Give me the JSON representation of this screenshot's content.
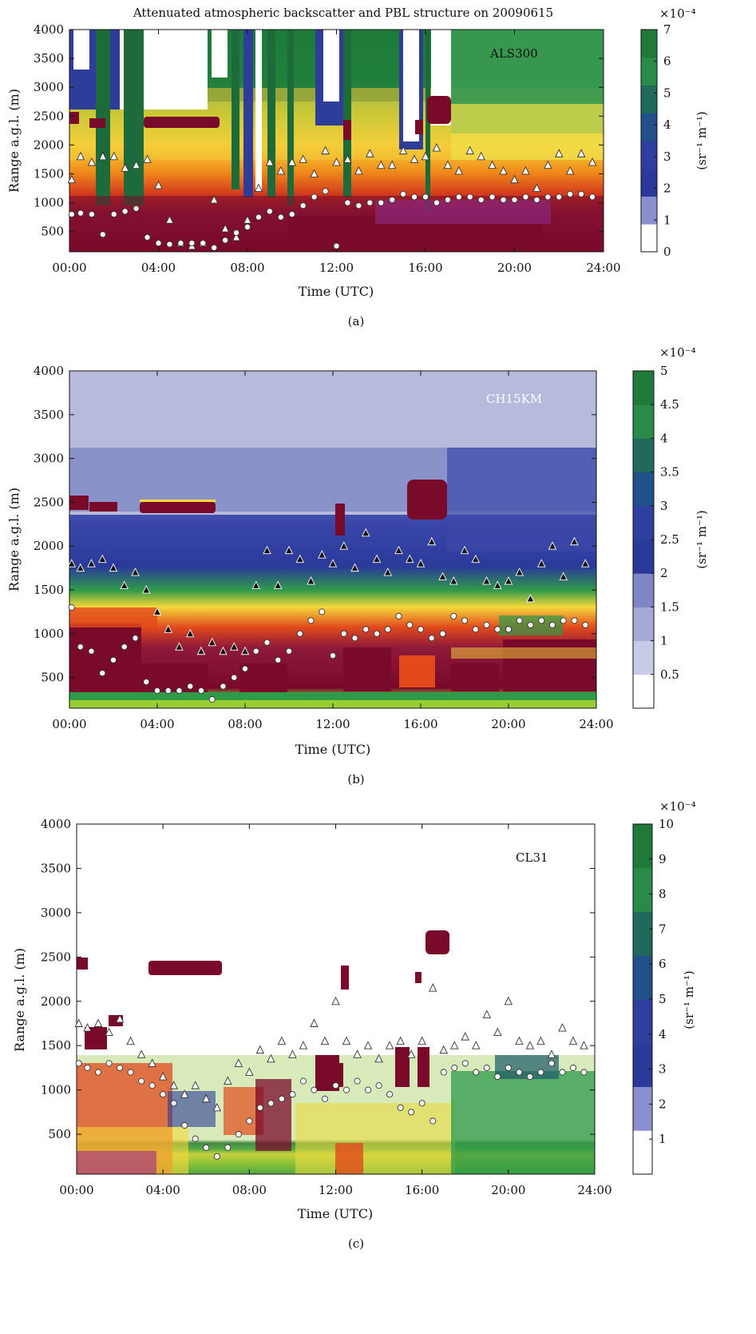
{
  "figure": {
    "title": "Attenuated atmospheric backscatter and PBL structure on 20090615"
  },
  "chart_data": [
    {
      "type": "heatmap",
      "panel_label": "(a)",
      "instrument": "ALS300",
      "xlabel": "Time (UTC)",
      "ylabel": "Range a.g.l. (m)",
      "x_ticks": [
        "00:00",
        "04:00",
        "08:00",
        "12:00",
        "16:00",
        "20:00",
        "24:00"
      ],
      "y_ticks": [
        500,
        1000,
        1500,
        2000,
        2500,
        3000,
        3500,
        4000
      ],
      "xlim": [
        0,
        24
      ],
      "ylim": [
        150,
        4000
      ],
      "colorbar": {
        "label": "(sr⁻¹ m⁻¹)",
        "exponent": "×10⁻⁴",
        "ticks": [
          0,
          1,
          2,
          3,
          4,
          5,
          6,
          7
        ],
        "range": [
          0,
          7
        ]
      },
      "pbl_triangles": [
        [
          0.1,
          1400
        ],
        [
          0.5,
          1800
        ],
        [
          1.0,
          1700
        ],
        [
          1.5,
          1800
        ],
        [
          2.0,
          1800
        ],
        [
          2.5,
          1600
        ],
        [
          3.0,
          1650
        ],
        [
          3.5,
          1750
        ],
        [
          4.0,
          1300
        ],
        [
          4.5,
          700
        ],
        [
          5.0,
          300
        ],
        [
          5.5,
          250
        ],
        [
          6.0,
          300
        ],
        [
          6.5,
          1050
        ],
        [
          7.0,
          550
        ],
        [
          7.5,
          400
        ],
        [
          8.0,
          700
        ],
        [
          8.5,
          1250
        ],
        [
          9.0,
          1700
        ],
        [
          9.5,
          1550
        ],
        [
          10.0,
          1700
        ],
        [
          10.5,
          1750
        ],
        [
          11.0,
          1500
        ],
        [
          11.5,
          1900
        ],
        [
          12.0,
          1700
        ],
        [
          12.5,
          1750
        ],
        [
          13.0,
          1550
        ],
        [
          13.5,
          1850
        ],
        [
          14.0,
          1650
        ],
        [
          14.5,
          1650
        ],
        [
          15.0,
          1900
        ],
        [
          15.5,
          1750
        ],
        [
          16.0,
          1800
        ],
        [
          16.5,
          1950
        ],
        [
          17.0,
          1650
        ],
        [
          17.5,
          1550
        ],
        [
          18.0,
          1900
        ],
        [
          18.5,
          1800
        ],
        [
          19.0,
          1650
        ],
        [
          19.5,
          1550
        ],
        [
          20.0,
          1400
        ],
        [
          20.5,
          1550
        ],
        [
          21.0,
          1250
        ],
        [
          21.5,
          1650
        ],
        [
          22.0,
          1850
        ],
        [
          22.5,
          1550
        ],
        [
          23.0,
          1850
        ],
        [
          23.5,
          1700
        ]
      ],
      "pbl_circles": [
        [
          0.1,
          800
        ],
        [
          0.5,
          820
        ],
        [
          1.0,
          800
        ],
        [
          1.5,
          450
        ],
        [
          2.0,
          800
        ],
        [
          2.5,
          850
        ],
        [
          3.0,
          900
        ],
        [
          3.5,
          400
        ],
        [
          4.0,
          300
        ],
        [
          4.5,
          280
        ],
        [
          5.0,
          300
        ],
        [
          5.5,
          300
        ],
        [
          6.0,
          300
        ],
        [
          6.5,
          220
        ],
        [
          7.0,
          350
        ],
        [
          7.5,
          480
        ],
        [
          8.0,
          580
        ],
        [
          8.5,
          750
        ],
        [
          9.0,
          850
        ],
        [
          9.5,
          750
        ],
        [
          10.0,
          800
        ],
        [
          10.5,
          950
        ],
        [
          11.0,
          1100
        ],
        [
          11.5,
          1200
        ],
        [
          12.0,
          250
        ],
        [
          12.5,
          1000
        ],
        [
          13.0,
          950
        ],
        [
          13.5,
          1000
        ],
        [
          14.0,
          1000
        ],
        [
          14.5,
          1050
        ],
        [
          15.0,
          1150
        ],
        [
          15.5,
          1100
        ],
        [
          16.0,
          1100
        ],
        [
          16.5,
          1000
        ],
        [
          17.0,
          1050
        ],
        [
          17.5,
          1100
        ],
        [
          18.0,
          1100
        ],
        [
          18.5,
          1050
        ],
        [
          19.0,
          1100
        ],
        [
          19.5,
          1050
        ],
        [
          20.0,
          1050
        ],
        [
          20.5,
          1100
        ],
        [
          21.0,
          1050
        ],
        [
          21.5,
          1100
        ],
        [
          22.0,
          1100
        ],
        [
          22.5,
          1150
        ],
        [
          23.0,
          1150
        ],
        [
          23.5,
          1100
        ]
      ]
    },
    {
      "type": "heatmap",
      "panel_label": "(b)",
      "instrument": "CH15KM",
      "xlabel": "Time (UTC)",
      "ylabel": "Range a.g.l. (m)",
      "x_ticks": [
        "00:00",
        "04:00",
        "08:00",
        "12:00",
        "16:00",
        "20:00",
        "24:00"
      ],
      "y_ticks": [
        500,
        1000,
        1500,
        2000,
        2500,
        3000,
        3500,
        4000
      ],
      "xlim": [
        0,
        24
      ],
      "ylim": [
        150,
        4000
      ],
      "colorbar": {
        "label": "(sr⁻¹ m⁻¹)",
        "exponent": "×10⁻⁴",
        "ticks": [
          0.5,
          1,
          1.5,
          2,
          2.5,
          3,
          3.5,
          4,
          4.5,
          5
        ],
        "range": [
          0,
          5
        ]
      },
      "pbl_triangles": [
        [
          0.1,
          1800
        ],
        [
          0.5,
          1750
        ],
        [
          1.0,
          1800
        ],
        [
          1.5,
          1850
        ],
        [
          2.0,
          1750
        ],
        [
          2.5,
          1550
        ],
        [
          3.0,
          1700
        ],
        [
          3.5,
          1500
        ],
        [
          4.0,
          1250
        ],
        [
          4.5,
          1050
        ],
        [
          5.0,
          850
        ],
        [
          5.5,
          1000
        ],
        [
          6.0,
          800
        ],
        [
          6.5,
          900
        ],
        [
          7.0,
          800
        ],
        [
          7.5,
          850
        ],
        [
          8.0,
          800
        ],
        [
          8.5,
          1550
        ],
        [
          9.0,
          1950
        ],
        [
          9.5,
          1550
        ],
        [
          10.0,
          1950
        ],
        [
          10.5,
          1850
        ],
        [
          11.0,
          1600
        ],
        [
          11.5,
          1900
        ],
        [
          12.0,
          1800
        ],
        [
          12.5,
          2000
        ],
        [
          13.0,
          1750
        ],
        [
          13.5,
          2150
        ],
        [
          14.0,
          1850
        ],
        [
          14.5,
          1700
        ],
        [
          15.0,
          1950
        ],
        [
          15.5,
          1850
        ],
        [
          16.0,
          1800
        ],
        [
          16.5,
          2050
        ],
        [
          17.0,
          1650
        ],
        [
          17.5,
          1600
        ],
        [
          18.0,
          1950
        ],
        [
          18.5,
          1850
        ],
        [
          19.0,
          1600
        ],
        [
          19.5,
          1550
        ],
        [
          20.0,
          1600
        ],
        [
          20.5,
          1700
        ],
        [
          21.0,
          1400
        ],
        [
          21.5,
          1800
        ],
        [
          22.0,
          2000
        ],
        [
          22.5,
          1650
        ],
        [
          23.0,
          2050
        ],
        [
          23.5,
          1800
        ]
      ],
      "pbl_circles": [
        [
          0.1,
          1300
        ],
        [
          0.5,
          850
        ],
        [
          1.0,
          800
        ],
        [
          1.5,
          550
        ],
        [
          2.0,
          700
        ],
        [
          2.5,
          850
        ],
        [
          3.0,
          950
        ],
        [
          3.5,
          450
        ],
        [
          4.0,
          350
        ],
        [
          4.5,
          350
        ],
        [
          5.0,
          350
        ],
        [
          5.5,
          400
        ],
        [
          6.0,
          350
        ],
        [
          6.5,
          250
        ],
        [
          7.0,
          400
        ],
        [
          7.5,
          500
        ],
        [
          8.0,
          600
        ],
        [
          8.5,
          800
        ],
        [
          9.0,
          900
        ],
        [
          9.5,
          700
        ],
        [
          10.0,
          800
        ],
        [
          10.5,
          1000
        ],
        [
          11.0,
          1150
        ],
        [
          11.5,
          1250
        ],
        [
          12.0,
          750
        ],
        [
          12.5,
          1000
        ],
        [
          13.0,
          950
        ],
        [
          13.5,
          1050
        ],
        [
          14.0,
          1000
        ],
        [
          14.5,
          1050
        ],
        [
          15.0,
          1200
        ],
        [
          15.5,
          1100
        ],
        [
          16.0,
          1050
        ],
        [
          16.5,
          950
        ],
        [
          17.0,
          1000
        ],
        [
          17.5,
          1200
        ],
        [
          18.0,
          1150
        ],
        [
          18.5,
          1050
        ],
        [
          19.0,
          1100
        ],
        [
          19.5,
          1050
        ],
        [
          20.0,
          1050
        ],
        [
          20.5,
          1150
        ],
        [
          21.0,
          1100
        ],
        [
          21.5,
          1150
        ],
        [
          22.0,
          1100
        ],
        [
          22.5,
          1150
        ],
        [
          23.0,
          1150
        ],
        [
          23.5,
          1100
        ]
      ]
    },
    {
      "type": "heatmap",
      "panel_label": "(c)",
      "instrument": "CL31",
      "xlabel": "Time (UTC)",
      "ylabel": "Range a.g.l. (m)",
      "x_ticks": [
        "00:00",
        "04:00",
        "08:00",
        "12:00",
        "16:00",
        "20:00",
        "24:00"
      ],
      "y_ticks": [
        500,
        1000,
        1500,
        2000,
        2500,
        3000,
        3500,
        4000
      ],
      "xlim": [
        0,
        24
      ],
      "ylim": [
        50,
        4000
      ],
      "colorbar": {
        "label": "(sr⁻¹ m⁻¹)",
        "exponent": "×10⁻⁴",
        "ticks": [
          1,
          2,
          3,
          4,
          5,
          6,
          7,
          8,
          9,
          10
        ],
        "range": [
          0,
          10
        ]
      },
      "pbl_triangles": [
        [
          0.1,
          1750
        ],
        [
          0.5,
          1700
        ],
        [
          1.0,
          1750
        ],
        [
          1.5,
          1650
        ],
        [
          2.0,
          1800
        ],
        [
          2.5,
          1550
        ],
        [
          3.0,
          1400
        ],
        [
          3.5,
          1300
        ],
        [
          4.0,
          1150
        ],
        [
          4.5,
          1050
        ],
        [
          5.0,
          950
        ],
        [
          5.5,
          1050
        ],
        [
          6.0,
          900
        ],
        [
          6.5,
          800
        ],
        [
          7.0,
          1100
        ],
        [
          7.5,
          1300
        ],
        [
          8.0,
          1200
        ],
        [
          8.5,
          1450
        ],
        [
          9.0,
          1350
        ],
        [
          9.5,
          1550
        ],
        [
          10.0,
          1400
        ],
        [
          10.5,
          1500
        ],
        [
          11.0,
          1750
        ],
        [
          11.5,
          1550
        ],
        [
          12.0,
          2000
        ],
        [
          12.5,
          1550
        ],
        [
          13.0,
          1400
        ],
        [
          13.5,
          1500
        ],
        [
          14.0,
          1350
        ],
        [
          14.5,
          1500
        ],
        [
          15.0,
          1550
        ],
        [
          15.5,
          1400
        ],
        [
          16.0,
          1550
        ],
        [
          16.5,
          2150
        ],
        [
          17.0,
          1450
        ],
        [
          17.5,
          1500
        ],
        [
          18.0,
          1600
        ],
        [
          18.5,
          1500
        ],
        [
          19.0,
          1850
        ],
        [
          19.5,
          1650
        ],
        [
          20.0,
          2000
        ],
        [
          20.5,
          1550
        ],
        [
          21.0,
          1500
        ],
        [
          21.5,
          1550
        ],
        [
          22.0,
          1400
        ],
        [
          22.5,
          1700
        ],
        [
          23.0,
          1550
        ],
        [
          23.5,
          1500
        ]
      ],
      "pbl_circles": [
        [
          0.1,
          1300
        ],
        [
          0.5,
          1250
        ],
        [
          1.0,
          1200
        ],
        [
          1.5,
          1300
        ],
        [
          2.0,
          1250
        ],
        [
          2.5,
          1200
        ],
        [
          3.0,
          1100
        ],
        [
          3.5,
          1050
        ],
        [
          4.0,
          950
        ],
        [
          4.5,
          850
        ],
        [
          5.0,
          600
        ],
        [
          5.5,
          450
        ],
        [
          6.0,
          350
        ],
        [
          6.5,
          250
        ],
        [
          7.0,
          350
        ],
        [
          7.5,
          500
        ],
        [
          8.0,
          650
        ],
        [
          8.5,
          800
        ],
        [
          9.0,
          850
        ],
        [
          9.5,
          900
        ],
        [
          10.0,
          950
        ],
        [
          10.5,
          1100
        ],
        [
          11.0,
          1000
        ],
        [
          11.5,
          900
        ],
        [
          12.0,
          1050
        ],
        [
          12.5,
          1000
        ],
        [
          13.0,
          1100
        ],
        [
          13.5,
          1000
        ],
        [
          14.0,
          1050
        ],
        [
          14.5,
          950
        ],
        [
          15.0,
          800
        ],
        [
          15.5,
          750
        ],
        [
          16.0,
          850
        ],
        [
          16.5,
          650
        ],
        [
          17.0,
          1200
        ],
        [
          17.5,
          1250
        ],
        [
          18.0,
          1300
        ],
        [
          18.5,
          1200
        ],
        [
          19.0,
          1250
        ],
        [
          19.5,
          1150
        ],
        [
          20.0,
          1250
        ],
        [
          20.5,
          1200
        ],
        [
          21.0,
          1150
        ],
        [
          21.5,
          1200
        ],
        [
          22.0,
          1300
        ],
        [
          22.5,
          1200
        ],
        [
          23.0,
          1250
        ],
        [
          23.5,
          1200
        ]
      ]
    }
  ]
}
